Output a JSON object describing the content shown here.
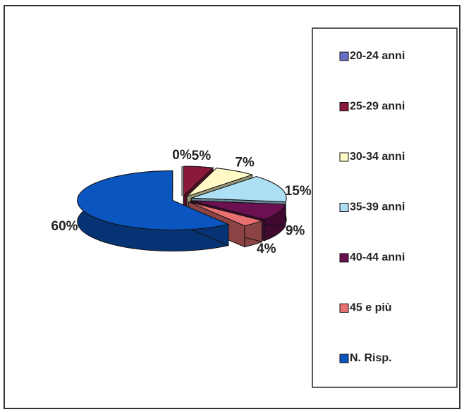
{
  "chart_data": {
    "type": "pie3d",
    "categories": [
      "20-24 anni",
      "25-29 anni",
      "30-34 anni",
      "35-39 anni",
      "40-44 anni",
      "45 e più",
      "N. Risp."
    ],
    "values": [
      0,
      5,
      7,
      15,
      9,
      4,
      60
    ],
    "value_labels": [
      "0%",
      "5%",
      "7%",
      "15%",
      "9%",
      "4%",
      "60%"
    ],
    "colors": [
      "#6670c8",
      "#8b1a3a",
      "#fffac8",
      "#aee0f5",
      "#6b1050",
      "#e87070",
      "#0a55c0"
    ],
    "legend": "right"
  }
}
